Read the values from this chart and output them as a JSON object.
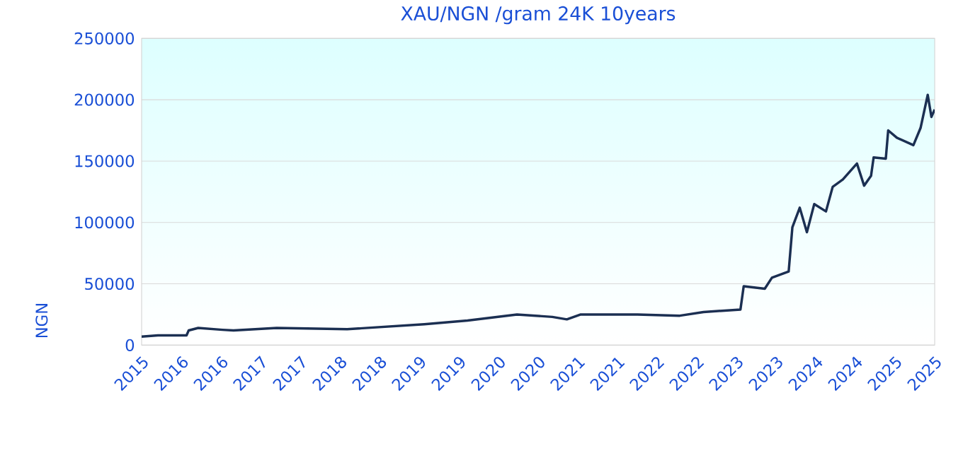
{
  "chart_data": {
    "type": "line",
    "title": "XAU/NGN /gram 24K 10years",
    "ylabel": "NGN",
    "color": "#1b2f52",
    "grid": "y",
    "x": [
      "2015-10-01",
      "2015-12-15",
      "2016-04-25",
      "2016-05-05",
      "2016-06-18",
      "2016-10-08",
      "2016-11-28",
      "2017-06-15",
      "2018-05-05",
      "2019-04-25",
      "2019-11-10",
      "2020-06-25",
      "2020-12-05",
      "2021-02-10",
      "2021-04-15",
      "2022-01-01",
      "2022-07-15",
      "2022-11-01",
      "2023-04-20",
      "2023-05-05",
      "2023-08-10",
      "2023-09-12",
      "2023-11-28",
      "2023-12-15",
      "2024-01-18",
      "2024-02-20",
      "2024-03-25",
      "2024-05-18",
      "2024-06-18",
      "2024-08-04",
      "2024-10-08",
      "2024-11-10",
      "2024-12-12",
      "2024-12-24",
      "2025-02-18",
      "2025-03-01",
      "2025-04-10",
      "2025-06-25",
      "2025-07-28",
      "2025-08-30",
      "2025-09-16",
      "2025-10-01"
    ],
    "values": [
      7000,
      8000,
      8000,
      12000,
      14000,
      12500,
      12000,
      14000,
      13000,
      17000,
      20000,
      25000,
      23000,
      21000,
      25000,
      25000,
      24000,
      27000,
      29000,
      48000,
      46000,
      55000,
      60000,
      96000,
      112000,
      92000,
      115000,
      109000,
      129000,
      135000,
      148000,
      130000,
      138000,
      153000,
      152000,
      175000,
      169000,
      163000,
      177000,
      204000,
      186000,
      192000
    ],
    "xlim": [
      "2015-10-01",
      "2025-10-01"
    ],
    "ylim": [
      0,
      250000
    ],
    "xticks": [
      {
        "value": "2015-10-01",
        "label": "2015"
      },
      {
        "value": "2016-04-01",
        "label": "2016"
      },
      {
        "value": "2016-10-01",
        "label": "2016"
      },
      {
        "value": "2017-04-01",
        "label": "2017"
      },
      {
        "value": "2017-10-01",
        "label": "2017"
      },
      {
        "value": "2018-04-01",
        "label": "2018"
      },
      {
        "value": "2018-10-01",
        "label": "2018"
      },
      {
        "value": "2019-04-01",
        "label": "2019"
      },
      {
        "value": "2019-10-01",
        "label": "2019"
      },
      {
        "value": "2020-04-01",
        "label": "2020"
      },
      {
        "value": "2020-10-01",
        "label": "2020"
      },
      {
        "value": "2021-04-01",
        "label": "2021"
      },
      {
        "value": "2021-10-01",
        "label": "2021"
      },
      {
        "value": "2022-04-01",
        "label": "2022"
      },
      {
        "value": "2022-10-01",
        "label": "2022"
      },
      {
        "value": "2023-04-01",
        "label": "2023"
      },
      {
        "value": "2023-10-01",
        "label": "2023"
      },
      {
        "value": "2024-04-01",
        "label": "2024"
      },
      {
        "value": "2024-10-01",
        "label": "2024"
      },
      {
        "value": "2025-04-01",
        "label": "2025"
      },
      {
        "value": "2025-10-01",
        "label": "2025"
      }
    ],
    "yticks": [
      0,
      50000,
      100000,
      150000,
      200000,
      250000
    ]
  }
}
